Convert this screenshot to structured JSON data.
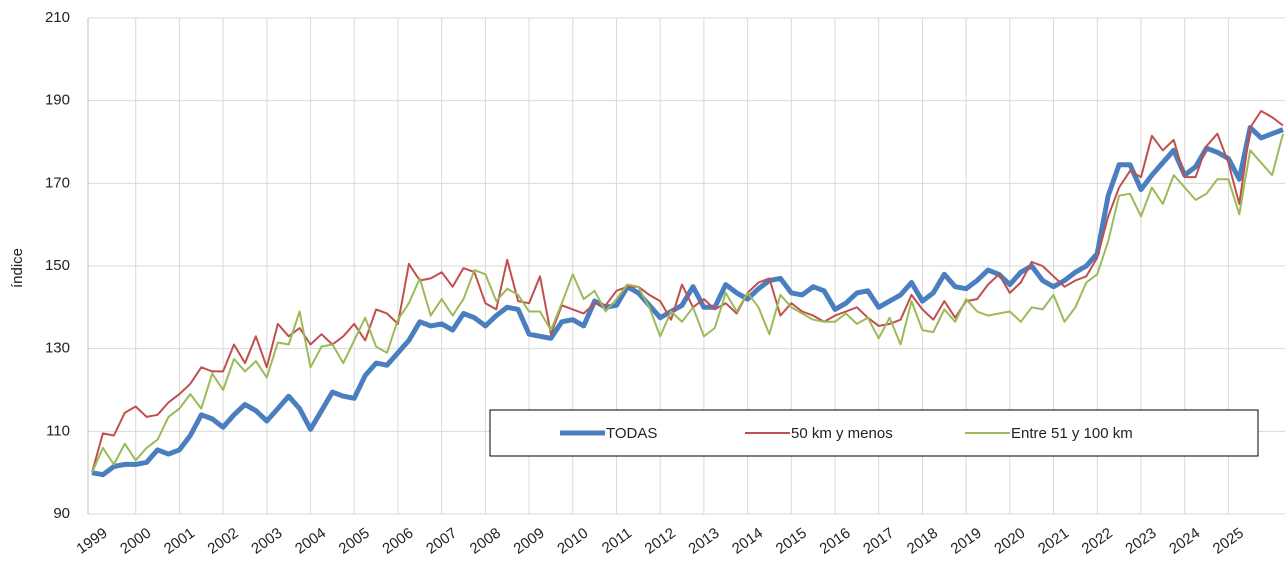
{
  "chart_data": {
    "type": "line",
    "y_label": "índice",
    "categories": [
      "1999",
      null,
      null,
      null,
      "2000",
      null,
      null,
      null,
      "2001",
      null,
      null,
      null,
      "2002",
      null,
      null,
      null,
      "2003",
      null,
      null,
      null,
      "2004",
      null,
      null,
      null,
      "2005",
      null,
      null,
      null,
      "2006",
      null,
      null,
      null,
      "2007",
      null,
      null,
      null,
      "2008",
      null,
      null,
      null,
      "2009",
      null,
      null,
      null,
      "2010",
      null,
      null,
      null,
      "2011",
      null,
      null,
      null,
      "2012",
      null,
      null,
      null,
      "2013",
      null,
      null,
      null,
      "2014",
      null,
      null,
      null,
      "2015",
      null,
      null,
      null,
      "2016",
      null,
      null,
      null,
      "2017",
      null,
      null,
      null,
      "2018",
      null,
      null,
      null,
      "2019",
      null,
      null,
      null,
      "2020",
      null,
      null,
      null,
      "2021",
      null,
      null,
      null,
      "2022",
      null,
      null,
      null,
      "2023",
      null,
      null,
      null,
      "2024",
      null,
      null,
      null,
      "2025",
      null,
      null,
      null,
      null,
      null
    ],
    "series": [
      {
        "name": "TODAS",
        "color": "#4a7ebf",
        "width": 5,
        "values": [
          100,
          99.5,
          101.5,
          102,
          102,
          102.5,
          105.5,
          104.5,
          105.5,
          109,
          114,
          113,
          111,
          114,
          116.5,
          115,
          112.5,
          115.5,
          118.5,
          115.5,
          110.5,
          115,
          119.5,
          118.5,
          118,
          123.5,
          126.5,
          126,
          129,
          132,
          136.5,
          135.5,
          136,
          134.5,
          138.5,
          137.5,
          135.5,
          138,
          140,
          139.5,
          133.5,
          133,
          132.5,
          136.5,
          137,
          135.5,
          141.5,
          140,
          140.5,
          145,
          143.5,
          140.5,
          137.5,
          139,
          140.5,
          145,
          140,
          140,
          145.5,
          143.5,
          142,
          144.5,
          146.5,
          147,
          143.5,
          143,
          145,
          144,
          139.5,
          141,
          143.5,
          144,
          140,
          141.5,
          143,
          146,
          141.5,
          143.5,
          148,
          145,
          144.5,
          146.5,
          149,
          148,
          145.5,
          148.5,
          150,
          146.5,
          145,
          146.5,
          148.5,
          150,
          153,
          167,
          174.5,
          174.5,
          168.5,
          172,
          175,
          178,
          172,
          174,
          178.5,
          177.5,
          176,
          171,
          183.5,
          181,
          182,
          183
        ]
      },
      {
        "name": "50 km y menos",
        "color": "#c0504d",
        "width": 2,
        "values": [
          100,
          109.5,
          109,
          114.5,
          116,
          113.5,
          114,
          117,
          119,
          121.5,
          125.5,
          124.5,
          124.5,
          131,
          126.5,
          133,
          125.5,
          136,
          133,
          135,
          131,
          133.5,
          131,
          133,
          136,
          132,
          139.5,
          138.5,
          136,
          150.5,
          146.5,
          147,
          148.5,
          145,
          149.5,
          148.5,
          141,
          139.5,
          151.5,
          141.5,
          141,
          147.5,
          133.5,
          140.5,
          139.5,
          138.5,
          141,
          140.5,
          144,
          145,
          145,
          143,
          141.5,
          137,
          145.5,
          140,
          142,
          139.5,
          141,
          138.5,
          143.5,
          146,
          147,
          138,
          141,
          139,
          138,
          136.5,
          138,
          139,
          140,
          137.5,
          135.5,
          136,
          137,
          143,
          139.5,
          137,
          141.5,
          137.5,
          141.5,
          142,
          145.5,
          148,
          143.5,
          146,
          151,
          150,
          147.5,
          145,
          146.5,
          147.5,
          152,
          162,
          169,
          173,
          171.5,
          181.5,
          178,
          180.5,
          171.5,
          171.5,
          179,
          182,
          175,
          165,
          183.5,
          187.5,
          186,
          184
        ]
      },
      {
        "name": "Entre 51 y 100 km",
        "color": "#9bbb59",
        "width": 2,
        "values": [
          100,
          106,
          102,
          107,
          103,
          106,
          108,
          113.5,
          115.5,
          119,
          115.5,
          124,
          120,
          127.5,
          124.5,
          127,
          123,
          131.5,
          131,
          139,
          125.5,
          130.5,
          131,
          126.5,
          132,
          137.5,
          130.5,
          129,
          137,
          141,
          147,
          138,
          142,
          138,
          142,
          149,
          148,
          141.5,
          144.5,
          143,
          139,
          139,
          134.5,
          141,
          148,
          142,
          144,
          139,
          142,
          145.5,
          145,
          140,
          133,
          139,
          136.5,
          140,
          133,
          135,
          143.5,
          139,
          143.5,
          140,
          133.5,
          143,
          140,
          138.5,
          137,
          136.5,
          136.5,
          138.5,
          136,
          137.5,
          132.5,
          137.5,
          131,
          141.5,
          134.5,
          134,
          139.5,
          136.5,
          142,
          139,
          138,
          138.5,
          139,
          136.5,
          140,
          139.5,
          143,
          136.5,
          140,
          146,
          148,
          156,
          167,
          167.5,
          162,
          169,
          165,
          172,
          169,
          166,
          167.5,
          171,
          171,
          162.5,
          178,
          175,
          172,
          182
        ]
      }
    ],
    "ylim": [
      90,
      210
    ],
    "yticks": [
      90,
      110,
      130,
      150,
      170,
      190,
      210
    ],
    "grid": true
  }
}
